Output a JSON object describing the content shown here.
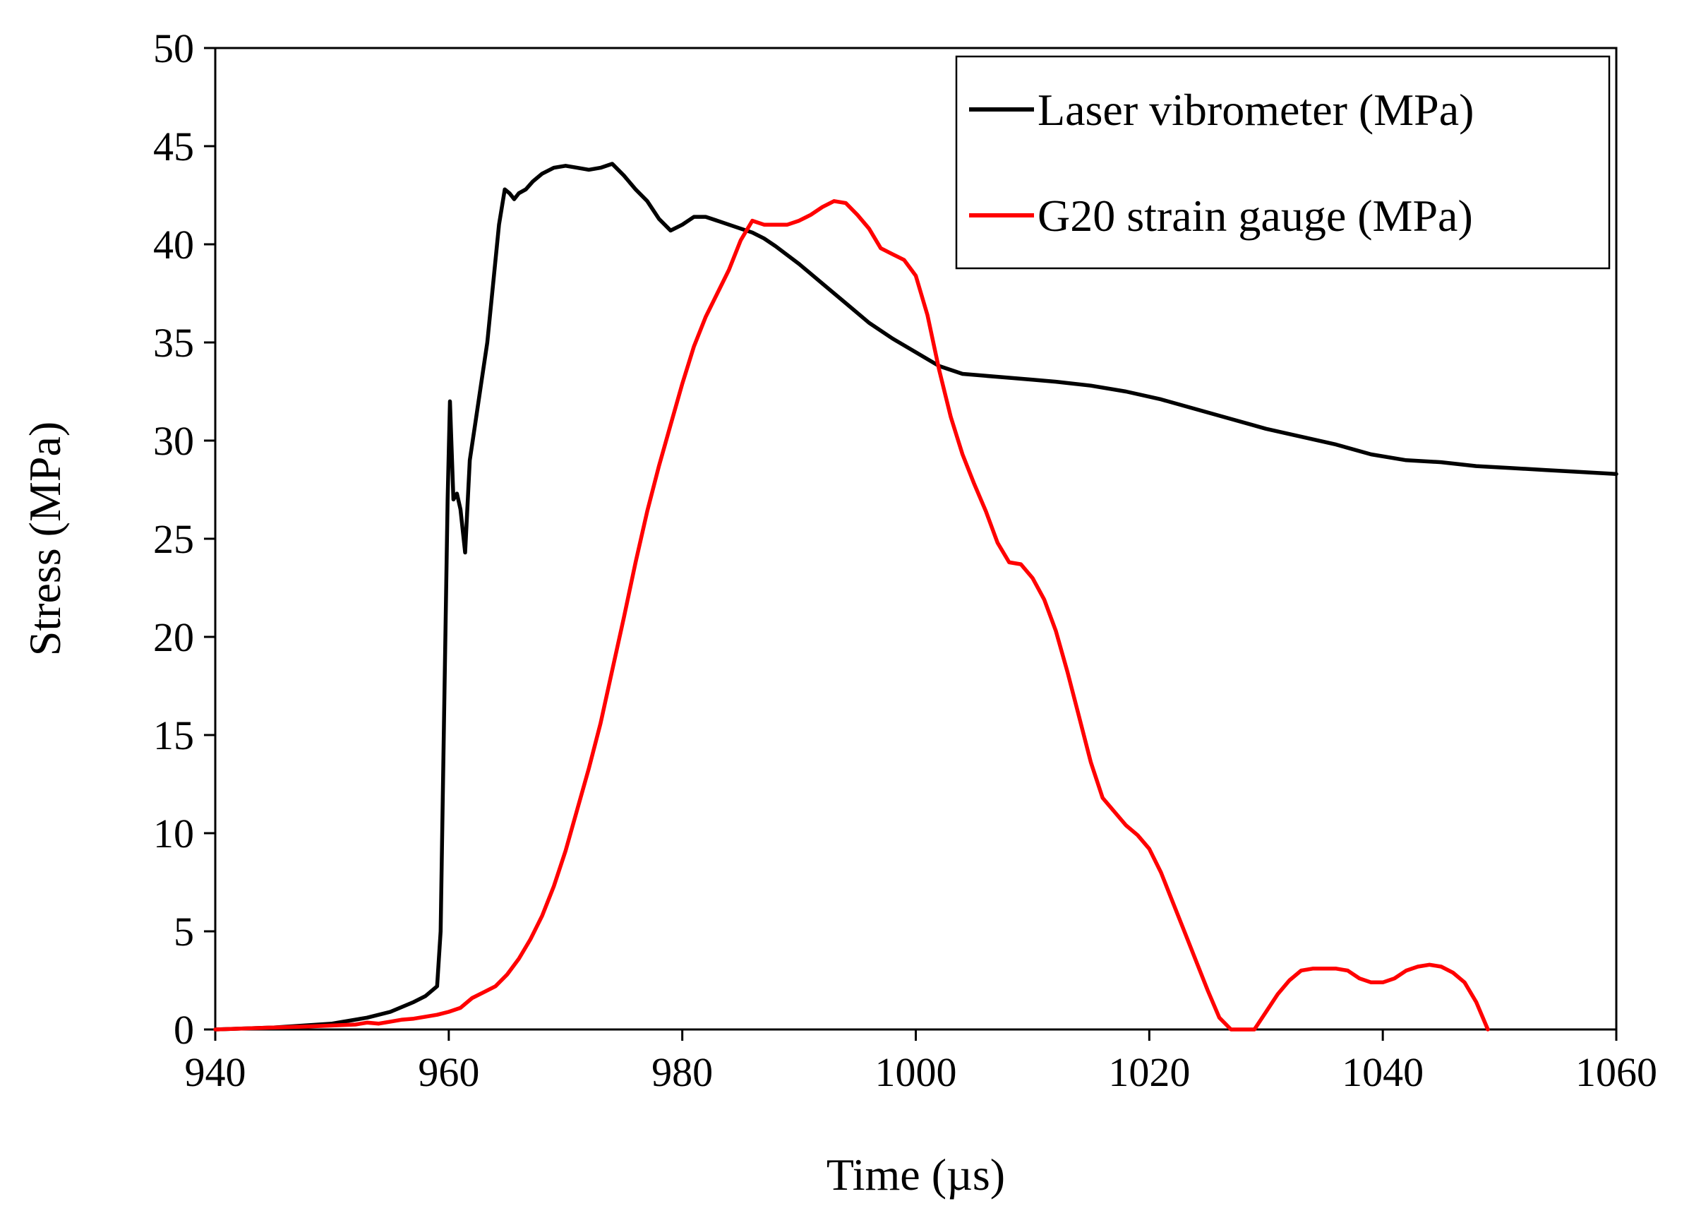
{
  "chart_data": {
    "type": "line",
    "xlabel": "Time (µs)",
    "ylabel": "Stress (MPa)",
    "xlim": [
      940,
      1060
    ],
    "ylim": [
      0,
      50
    ],
    "xticks": [
      940,
      960,
      980,
      1000,
      1020,
      1040,
      1060
    ],
    "yticks": [
      0,
      5,
      10,
      15,
      20,
      25,
      30,
      35,
      40,
      45,
      50
    ],
    "grid": false,
    "legend_position": "top-right",
    "series": [
      {
        "name": "Laser vibrometer (MPa)",
        "color": "#000000",
        "x": [
          940,
          945,
          950,
          953,
          955,
          957,
          958,
          959,
          959.3,
          959.6,
          959.9,
          960.1,
          960.4,
          960.7,
          961.0,
          961.4,
          961.8,
          962.3,
          962.8,
          963.3,
          963.8,
          964.3,
          964.8,
          965.2,
          965.6,
          966.0,
          966.6,
          967.2,
          968,
          969,
          970,
          971,
          972,
          973,
          974,
          975,
          976,
          977,
          978,
          979,
          980,
          981,
          982,
          983,
          984,
          985,
          986,
          987,
          988,
          990,
          992,
          994,
          996,
          998,
          1000,
          1002,
          1004,
          1006,
          1008,
          1010,
          1012,
          1015,
          1018,
          1021,
          1024,
          1027,
          1030,
          1033,
          1036,
          1039,
          1042,
          1045,
          1048,
          1051,
          1054,
          1057,
          1060
        ],
        "y": [
          0,
          0.1,
          0.3,
          0.6,
          0.9,
          1.4,
          1.7,
          2.2,
          5,
          16,
          27,
          32,
          27,
          27.3,
          26.5,
          24.3,
          29,
          31,
          33,
          35,
          38,
          41,
          42.8,
          42.6,
          42.3,
          42.6,
          42.8,
          43.2,
          43.6,
          43.9,
          44.0,
          43.9,
          43.8,
          43.9,
          44.1,
          43.5,
          42.8,
          42.2,
          41.3,
          40.7,
          41.0,
          41.4,
          41.4,
          41.2,
          41.0,
          40.8,
          40.6,
          40.3,
          39.9,
          39.0,
          38.0,
          37.0,
          36.0,
          35.2,
          34.5,
          33.8,
          33.4,
          33.3,
          33.2,
          33.1,
          33.0,
          32.8,
          32.5,
          32.1,
          31.6,
          31.1,
          30.6,
          30.2,
          29.8,
          29.3,
          29.0,
          28.9,
          28.7,
          28.6,
          28.5,
          28.4,
          28.3
        ]
      },
      {
        "name": "G20 strain gauge (MPa)",
        "color": "#ff0000",
        "x": [
          940,
          945,
          948,
          950,
          952,
          953,
          954,
          955,
          956,
          957,
          958,
          959,
          960,
          961,
          962,
          963,
          964,
          965,
          966,
          967,
          968,
          969,
          970,
          971,
          972,
          973,
          974,
          975,
          976,
          977,
          978,
          979,
          980,
          981,
          982,
          983,
          984,
          985,
          986,
          987,
          988,
          989,
          990,
          991,
          992,
          993,
          994,
          995,
          996,
          997,
          998,
          999,
          1000,
          1001,
          1002,
          1003,
          1004,
          1005,
          1006,
          1007,
          1008,
          1009,
          1010,
          1011,
          1012,
          1013,
          1014,
          1015,
          1016,
          1017,
          1018,
          1019,
          1020,
          1021,
          1022,
          1023,
          1024,
          1025,
          1026,
          1027,
          1028,
          1029,
          1030,
          1031,
          1032,
          1033,
          1034,
          1035,
          1036,
          1037,
          1038,
          1039,
          1040,
          1041,
          1042,
          1043,
          1044,
          1045,
          1046,
          1047,
          1048,
          1049
        ],
        "y": [
          0,
          0.1,
          0.15,
          0.2,
          0.25,
          0.35,
          0.3,
          0.4,
          0.5,
          0.55,
          0.65,
          0.75,
          0.9,
          1.1,
          1.6,
          1.9,
          2.2,
          2.8,
          3.6,
          4.6,
          5.8,
          7.3,
          9.1,
          11.2,
          13.3,
          15.6,
          18.3,
          21.0,
          23.8,
          26.4,
          28.7,
          30.8,
          32.9,
          34.8,
          36.3,
          37.5,
          38.7,
          40.2,
          41.2,
          41.0,
          41.0,
          41.0,
          41.2,
          41.5,
          41.9,
          42.2,
          42.1,
          41.5,
          40.8,
          39.8,
          39.5,
          39.2,
          38.4,
          36.4,
          33.6,
          31.2,
          29.3,
          27.8,
          26.4,
          24.8,
          23.8,
          23.7,
          23.0,
          21.9,
          20.3,
          18.2,
          15.9,
          13.6,
          11.8,
          11.1,
          10.4,
          9.9,
          9.2,
          8.0,
          6.5,
          5.0,
          3.5,
          2.0,
          0.6,
          0,
          0,
          0,
          0.9,
          1.8,
          2.5,
          3.0,
          3.1,
          3.1,
          3.1,
          3.0,
          2.6,
          2.4,
          2.4,
          2.6,
          3.0,
          3.2,
          3.3,
          3.2,
          2.9,
          2.4,
          1.4,
          0
        ]
      }
    ]
  }
}
